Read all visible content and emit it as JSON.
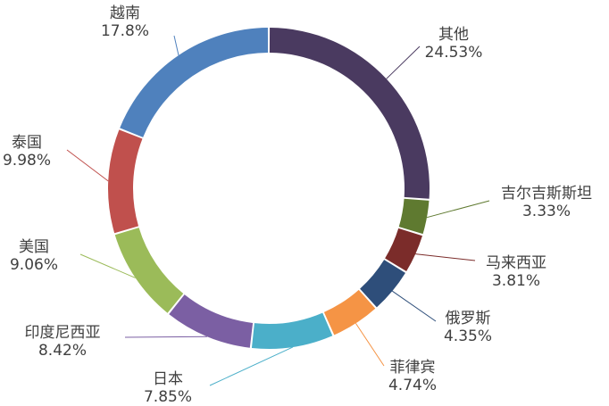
{
  "chart_data": {
    "type": "pie",
    "donut": true,
    "title": "",
    "legend": "none",
    "slices": [
      {
        "label": "其他",
        "value": 24.53,
        "display": "24.53%",
        "color": "#4a3a60"
      },
      {
        "label": "吉尔吉斯斯坦",
        "value": 3.33,
        "display": "3.33%",
        "color": "#5f7a30"
      },
      {
        "label": "马来西亚",
        "value": 3.81,
        "display": "3.81%",
        "color": "#7b2c2a"
      },
      {
        "label": "俄罗斯",
        "value": 4.35,
        "display": "4.35%",
        "color": "#2e4e7a"
      },
      {
        "label": "菲律宾",
        "value": 4.74,
        "display": "4.74%",
        "color": "#f59445"
      },
      {
        "label": "日本",
        "value": 7.85,
        "display": "7.85%",
        "color": "#4bafc9"
      },
      {
        "label": "印度尼西亚",
        "value": 8.42,
        "display": "8.42%",
        "color": "#7b5fa3"
      },
      {
        "label": "美国",
        "value": 9.06,
        "display": "9.06%",
        "color": "#9bbb59"
      },
      {
        "label": "泰国",
        "value": 9.98,
        "display": "9.98%",
        "color": "#c0504d"
      },
      {
        "label": "越南",
        "value": 17.8,
        "display": "17.8%",
        "color": "#4f81bd"
      }
    ]
  }
}
